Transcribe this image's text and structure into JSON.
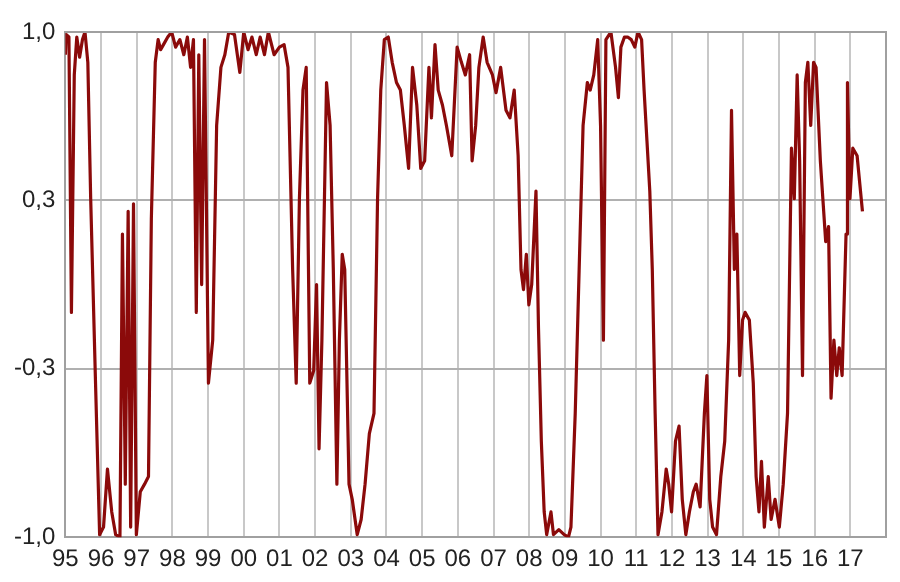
{
  "chart_data": {
    "type": "line",
    "color": "#8b0a0a",
    "grid": true,
    "xlim": [
      1995,
      2018
    ],
    "ylim": [
      -1,
      1
    ],
    "xticks": [
      {
        "value": 1995,
        "label": "95"
      },
      {
        "value": 1996,
        "label": "96"
      },
      {
        "value": 1997,
        "label": "97"
      },
      {
        "value": 1998,
        "label": "98"
      },
      {
        "value": 1999,
        "label": "99"
      },
      {
        "value": 2000,
        "label": "00"
      },
      {
        "value": 2001,
        "label": "01"
      },
      {
        "value": 2002,
        "label": "02"
      },
      {
        "value": 2003,
        "label": "03"
      },
      {
        "value": 2004,
        "label": "04"
      },
      {
        "value": 2005,
        "label": "05"
      },
      {
        "value": 2006,
        "label": "06"
      },
      {
        "value": 2007,
        "label": "07"
      },
      {
        "value": 2008,
        "label": "08"
      },
      {
        "value": 2009,
        "label": "09"
      },
      {
        "value": 2010,
        "label": "10"
      },
      {
        "value": 2011,
        "label": "11"
      },
      {
        "value": 2012,
        "label": "12"
      },
      {
        "value": 2013,
        "label": "13"
      },
      {
        "value": 2014,
        "label": "14"
      },
      {
        "value": 2015,
        "label": "15"
      },
      {
        "value": 2016,
        "label": "16"
      },
      {
        "value": 2017,
        "label": "17"
      },
      {
        "value": 2018,
        "label": null
      }
    ],
    "yticks": [
      {
        "value": -1,
        "label": "-1,0"
      },
      {
        "value": -0.333,
        "label": "-0,3"
      },
      {
        "value": 0.333,
        "label": "0,3"
      },
      {
        "value": 1,
        "label": "1,0"
      }
    ],
    "x": [
      1995.0,
      1995.02,
      1995.1,
      1995.17,
      1995.25,
      1995.32,
      1995.4,
      1995.48,
      1995.55,
      1995.63,
      1995.71,
      1995.84,
      1995.96,
      1996.07,
      1996.18,
      1996.3,
      1996.41,
      1996.53,
      1996.6,
      1996.68,
      1996.76,
      1996.83,
      1996.91,
      1996.99,
      1997.1,
      1997.22,
      1997.33,
      1997.41,
      1997.52,
      1997.6,
      1997.67,
      1997.75,
      1997.87,
      1997.98,
      1998.09,
      1998.21,
      1998.32,
      1998.42,
      1998.51,
      1998.59,
      1998.67,
      1998.74,
      1998.82,
      1998.9,
      1999.01,
      1999.13,
      1999.24,
      1999.36,
      1999.47,
      1999.58,
      1999.74,
      1999.89,
      2000.0,
      2000.12,
      2000.23,
      2000.35,
      2000.46,
      2000.58,
      2000.69,
      2000.85,
      2001.0,
      2001.13,
      2001.24,
      2001.37,
      2001.47,
      2001.56,
      2001.66,
      2001.75,
      2001.85,
      2001.96,
      2002.04,
      2002.11,
      2002.19,
      2002.32,
      2002.42,
      2002.51,
      2002.61,
      2002.68,
      2002.76,
      2002.83,
      2002.95,
      2003.04,
      2003.18,
      2003.29,
      2003.4,
      2003.52,
      2003.65,
      2003.75,
      2003.84,
      2003.94,
      2004.05,
      2004.16,
      2004.28,
      2004.39,
      2004.5,
      2004.62,
      2004.73,
      2004.85,
      2004.96,
      2005.07,
      2005.19,
      2005.26,
      2005.36,
      2005.45,
      2005.57,
      2005.68,
      2005.83,
      2005.98,
      2006.1,
      2006.21,
      2006.33,
      2006.4,
      2006.5,
      2006.59,
      2006.71,
      2006.82,
      2006.97,
      2007.07,
      2007.2,
      2007.35,
      2007.46,
      2007.58,
      2007.69,
      2007.77,
      2007.84,
      2007.92,
      2007.99,
      2008.07,
      2008.19,
      2008.26,
      2008.34,
      2008.42,
      2008.49,
      2008.61,
      2008.68,
      2008.83,
      2008.98,
      2009.1,
      2009.17,
      2009.29,
      2009.4,
      2009.51,
      2009.63,
      2009.71,
      2009.81,
      2009.92,
      2010.0,
      2010.08,
      2010.15,
      2010.29,
      2010.42,
      2010.5,
      2010.57,
      2010.67,
      2010.76,
      2010.86,
      2010.96,
      2011.05,
      2011.15,
      2011.22,
      2011.3,
      2011.38,
      2011.45,
      2011.53,
      2011.61,
      2011.72,
      2011.84,
      2011.91,
      2011.99,
      2012.1,
      2012.2,
      2012.29,
      2012.39,
      2012.49,
      2012.6,
      2012.68,
      2012.79,
      2012.91,
      2012.98,
      2013.06,
      2013.14,
      2013.25,
      2013.37,
      2013.48,
      2013.59,
      2013.67,
      2013.75,
      2013.82,
      2013.9,
      2013.98,
      2014.05,
      2014.17,
      2014.28,
      2014.36,
      2014.44,
      2014.51,
      2014.59,
      2014.7,
      2014.78,
      2014.89,
      2015.01,
      2015.12,
      2015.24,
      2015.35,
      2015.43,
      2015.51,
      2015.58,
      2015.66,
      2015.74,
      2015.81,
      2015.89,
      2015.97,
      2016.04,
      2016.16,
      2016.23,
      2016.31,
      2016.39,
      2016.46,
      2016.54,
      2016.62,
      2016.69,
      2016.77,
      2016.88,
      2016.92,
      2016.99,
      2017.07,
      2017.19,
      2017.34
    ],
    "values": [
      0.91,
      0.99,
      0.98,
      -0.11,
      0.83,
      0.98,
      0.9,
      0.97,
      1.0,
      0.88,
      0.34,
      -0.36,
      -0.99,
      -0.96,
      -0.73,
      -0.9,
      -0.99,
      -1.0,
      0.2,
      -0.79,
      0.29,
      -0.96,
      0.32,
      -0.99,
      -0.82,
      -0.79,
      -0.76,
      0.26,
      0.88,
      0.97,
      0.93,
      0.95,
      0.98,
      1.0,
      0.94,
      0.97,
      0.91,
      0.98,
      0.86,
      0.97,
      -0.11,
      0.91,
      0.0,
      0.97,
      -0.39,
      -0.22,
      0.63,
      0.86,
      0.91,
      1.0,
      0.99,
      0.84,
      1.0,
      0.93,
      0.98,
      0.91,
      0.98,
      0.91,
      1.0,
      0.91,
      0.94,
      0.95,
      0.86,
      0.06,
      -0.39,
      0.34,
      0.77,
      0.86,
      -0.39,
      -0.34,
      0.0,
      -0.65,
      -0.22,
      0.8,
      0.63,
      0.06,
      -0.79,
      -0.22,
      0.12,
      0.06,
      -0.79,
      -0.85,
      -0.99,
      -0.93,
      -0.79,
      -0.59,
      -0.51,
      0.34,
      0.77,
      0.97,
      0.98,
      0.88,
      0.8,
      0.77,
      0.63,
      0.46,
      0.86,
      0.71,
      0.46,
      0.49,
      0.86,
      0.66,
      0.95,
      0.77,
      0.71,
      0.63,
      0.51,
      0.94,
      0.88,
      0.83,
      0.91,
      0.49,
      0.63,
      0.86,
      0.98,
      0.88,
      0.83,
      0.76,
      0.86,
      0.69,
      0.66,
      0.77,
      0.51,
      0.06,
      -0.02,
      0.12,
      -0.08,
      0.0,
      0.37,
      -0.17,
      -0.62,
      -0.9,
      -0.99,
      -0.9,
      -0.99,
      -0.97,
      -0.99,
      -1.0,
      -0.96,
      -0.51,
      0.06,
      0.63,
      0.8,
      0.77,
      0.83,
      0.97,
      0.63,
      -0.22,
      0.97,
      1.0,
      0.86,
      0.74,
      0.94,
      0.98,
      0.98,
      0.97,
      0.94,
      1.0,
      0.97,
      0.77,
      0.57,
      0.37,
      0.06,
      -0.51,
      -0.99,
      -0.9,
      -0.73,
      -0.79,
      -0.9,
      -0.62,
      -0.56,
      -0.85,
      -0.99,
      -0.9,
      -0.82,
      -0.79,
      -0.88,
      -0.51,
      -0.36,
      -0.85,
      -0.96,
      -0.99,
      -0.76,
      -0.62,
      -0.22,
      0.69,
      0.06,
      0.2,
      -0.36,
      -0.14,
      -0.11,
      -0.14,
      -0.39,
      -0.76,
      -0.9,
      -0.7,
      -0.96,
      -0.76,
      -0.93,
      -0.85,
      -0.96,
      -0.79,
      -0.51,
      0.54,
      0.34,
      0.83,
      0.49,
      -0.36,
      0.8,
      0.88,
      0.63,
      0.88,
      0.86,
      0.49,
      0.34,
      0.17,
      0.23,
      -0.45,
      -0.22,
      -0.36,
      -0.25,
      -0.36,
      0.2,
      0.8,
      0.34,
      0.54,
      0.51,
      0.29
    ]
  }
}
